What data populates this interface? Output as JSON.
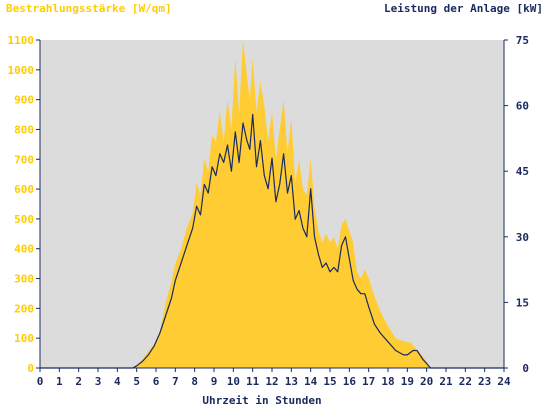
{
  "chart_data": {
    "type": "area",
    "left_axis_title": "Bestrahlungsstärke [W/qm]",
    "right_axis_title": "Leistung der Anlage [kW]",
    "xlabel": "Uhrzeit in Stunden",
    "x_ticks": [
      "0",
      "1",
      "2",
      "3",
      "4",
      "5",
      "6",
      "7",
      "8",
      "9",
      "10",
      "11",
      "12",
      "13",
      "14",
      "15",
      "16",
      "17",
      "18",
      "19",
      "20",
      "21",
      "22",
      "23",
      "24"
    ],
    "xlim": [
      0,
      24
    ],
    "left_ylim": [
      0,
      1100
    ],
    "right_ylim": [
      0,
      75
    ],
    "left_ticks": [
      "0",
      "100",
      "200",
      "300",
      "400",
      "500",
      "600",
      "700",
      "800",
      "900",
      "1000",
      "1100"
    ],
    "right_ticks": [
      "0",
      "15",
      "30",
      "45",
      "60",
      "75"
    ],
    "colors": {
      "plot_background": "#dcdcdc",
      "irradiance_fill": "#ffcc33",
      "left_axis_text": "#ffcc00",
      "power_line": "#1a2a5e",
      "right_axis": "#1a2a5e"
    },
    "series": [
      {
        "axis": "left",
        "style": "filled-area",
        "x": [
          0,
          4.8,
          5.0,
          5.3,
          5.6,
          5.9,
          6.2,
          6.5,
          6.8,
          7.0,
          7.3,
          7.6,
          7.9,
          8.1,
          8.3,
          8.5,
          8.7,
          8.9,
          9.1,
          9.3,
          9.5,
          9.7,
          9.9,
          10.1,
          10.3,
          10.5,
          10.7,
          10.85,
          11.0,
          11.2,
          11.4,
          11.6,
          11.8,
          12.0,
          12.2,
          12.4,
          12.6,
          12.8,
          13.0,
          13.2,
          13.4,
          13.6,
          13.8,
          14.0,
          14.2,
          14.4,
          14.6,
          14.8,
          15.0,
          15.2,
          15.4,
          15.6,
          15.8,
          16.0,
          16.2,
          16.4,
          16.6,
          16.8,
          17.0,
          17.3,
          17.6,
          18.0,
          18.4,
          18.8,
          19.2,
          19.5,
          19.8,
          20.0,
          20.2,
          24
        ],
        "y": [
          0,
          0,
          10,
          30,
          55,
          80,
          120,
          220,
          290,
          350,
          400,
          470,
          520,
          620,
          580,
          700,
          660,
          780,
          760,
          860,
          760,
          900,
          800,
          1040,
          850,
          1100,
          980,
          900,
          1040,
          860,
          960,
          880,
          760,
          860,
          700,
          800,
          900,
          720,
          840,
          620,
          700,
          600,
          580,
          700,
          540,
          460,
          420,
          450,
          420,
          440,
          400,
          480,
          500,
          460,
          420,
          320,
          300,
          330,
          300,
          240,
          190,
          140,
          100,
          90,
          85,
          60,
          40,
          20,
          0,
          0
        ]
      },
      {
        "axis": "right",
        "style": "line",
        "x": [
          0,
          4.8,
          5.0,
          5.3,
          5.6,
          5.9,
          6.2,
          6.5,
          6.8,
          7.0,
          7.3,
          7.6,
          7.9,
          8.1,
          8.3,
          8.5,
          8.7,
          8.9,
          9.1,
          9.3,
          9.5,
          9.7,
          9.9,
          10.1,
          10.3,
          10.5,
          10.7,
          10.85,
          11.0,
          11.2,
          11.4,
          11.6,
          11.8,
          12.0,
          12.2,
          12.4,
          12.6,
          12.8,
          13.0,
          13.2,
          13.4,
          13.6,
          13.8,
          14.0,
          14.2,
          14.4,
          14.6,
          14.8,
          15.0,
          15.2,
          15.4,
          15.6,
          15.8,
          16.0,
          16.2,
          16.4,
          16.6,
          16.8,
          17.0,
          17.3,
          17.6,
          18.0,
          18.4,
          18.8,
          19.0,
          19.3,
          19.5,
          19.8,
          20.0,
          20.2,
          24
        ],
        "y": [
          0,
          0,
          0.5,
          1.5,
          3,
          5,
          8,
          12,
          16,
          20,
          24,
          28,
          32,
          37,
          35,
          42,
          40,
          46,
          44,
          49,
          47,
          51,
          45,
          54,
          47,
          56,
          52,
          50,
          58,
          46,
          52,
          44,
          41,
          48,
          38,
          42,
          49,
          40,
          44,
          34,
          36,
          32,
          30,
          41,
          30,
          26,
          23,
          24,
          22,
          23,
          22,
          28,
          30,
          25,
          20,
          18,
          17,
          17,
          14,
          10,
          8,
          6,
          4,
          3,
          3,
          4,
          4,
          2,
          1,
          0,
          0
        ]
      }
    ],
    "grid": false,
    "legend": "none"
  }
}
